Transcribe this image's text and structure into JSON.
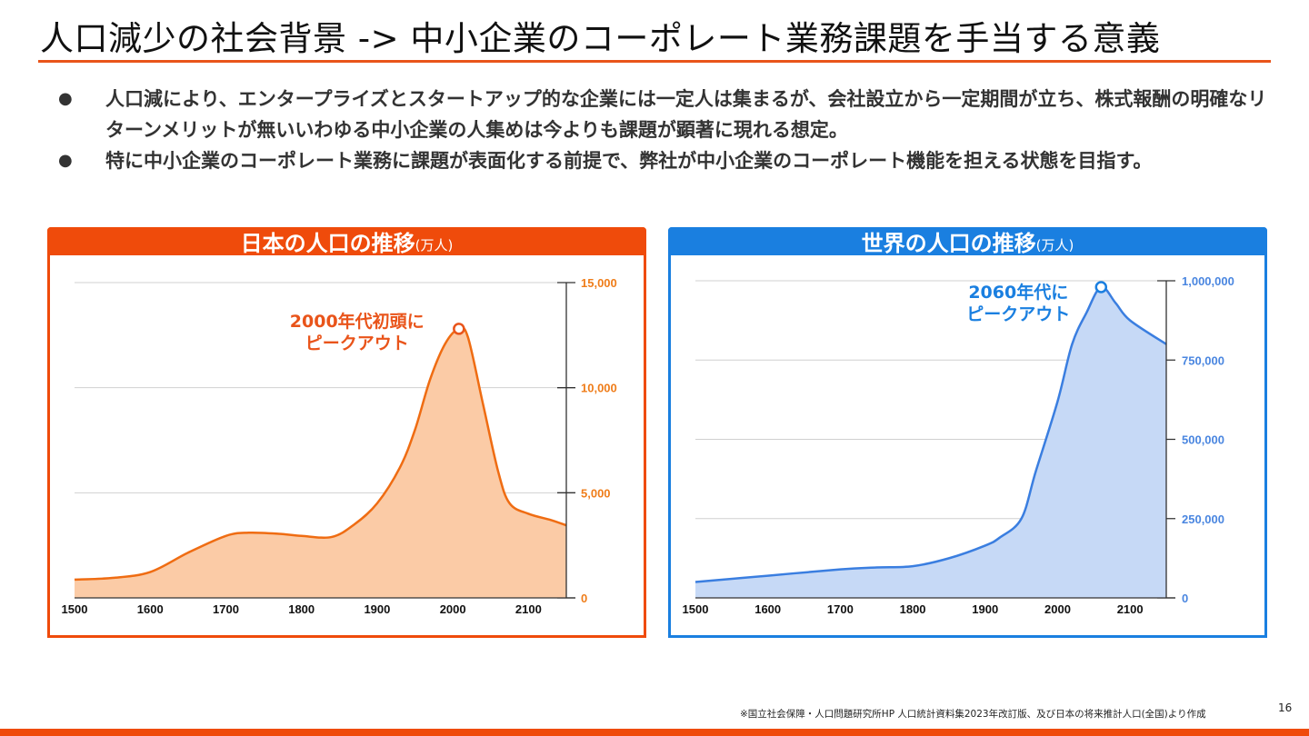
{
  "slide": {
    "title": "人口減少の社会背景 -> 中小企業のコーポレート業務課題を手当する意義",
    "bullets": [
      {
        "marker": "●",
        "text": "人口減により、エンタープライズとスタートアップ的な企業には一定人は集まるが、会社設立から一定期間が立ち、株式報酬の明確なリターンメリットが無いいわゆる中小企業の人集めは今よりも課題が顕著に現れる想定。"
      },
      {
        "marker": "●",
        "text": "特に中小企業のコーポレート業務に課題が表面化する前提で、弊社が中小企業のコーポレート機能を担える状態を目指す。"
      }
    ],
    "footnote": "※国立社会保障・人口問題研究所HP 人口統計資料集2023年改訂版、及び日本の将来推計人口(全国)より作成",
    "page_number": "16",
    "colors": {
      "accent_orange": "#ef4b0b",
      "accent_blue": "#1a7fe0",
      "title_rule": "#e9541a"
    }
  },
  "chart_data": [
    {
      "type": "area",
      "title": "日本の人口の推移",
      "unit_label": "(万人)",
      "xlabel": "",
      "ylabel": "",
      "x_ticks": [
        "1500",
        "1600",
        "1700",
        "1800",
        "1900",
        "2000",
        "2100"
      ],
      "y_ticks": [
        "0",
        "5,000",
        "10,000",
        "15,000"
      ],
      "xlim": [
        1500,
        2150
      ],
      "ylim": [
        0,
        15000
      ],
      "grid": true,
      "y_axis_position": "right",
      "annotation": {
        "lines": [
          "2000年代初頭に",
          "ピークアウト"
        ],
        "x": 2008,
        "y": 12800
      },
      "series": [
        {
          "name": "日本の人口",
          "x": [
            1500,
            1550,
            1600,
            1650,
            1700,
            1730,
            1770,
            1800,
            1840,
            1870,
            1900,
            1930,
            1950,
            1970,
            1990,
            2008,
            2020,
            2040,
            2060,
            2075,
            2100,
            2130,
            2150
          ],
          "values": [
            870,
            950,
            1230,
            2150,
            2950,
            3100,
            3050,
            2950,
            2900,
            3500,
            4500,
            6200,
            8000,
            10400,
            12100,
            12800,
            12400,
            9200,
            6000,
            4500,
            4000,
            3700,
            3450
          ]
        }
      ],
      "colors": {
        "line": "#ef6c12",
        "fill": "#fbcba6",
        "tick_label": "#ef7d1a"
      }
    },
    {
      "type": "area",
      "title": "世界の人口の推移",
      "unit_label": "(万人)",
      "xlabel": "",
      "ylabel": "",
      "x_ticks": [
        "1500",
        "1600",
        "1700",
        "1800",
        "1900",
        "2000",
        "2100"
      ],
      "y_ticks": [
        "0",
        "250,000",
        "500,000",
        "750,000",
        "1,000,000"
      ],
      "xlim": [
        1500,
        2150
      ],
      "ylim": [
        0,
        1000000
      ],
      "grid": true,
      "y_axis_position": "right",
      "annotation": {
        "lines": [
          "2060年代に",
          "ピークアウト"
        ],
        "x": 2060,
        "y": 980000
      },
      "series": [
        {
          "name": "世界の人口",
          "x": [
            1500,
            1600,
            1700,
            1750,
            1800,
            1850,
            1900,
            1920,
            1950,
            1970,
            2000,
            2020,
            2040,
            2060,
            2080,
            2100,
            2150
          ],
          "values": [
            50000,
            70000,
            90000,
            96000,
            100000,
            125000,
            165000,
            190000,
            250000,
            400000,
            620000,
            800000,
            900000,
            980000,
            930000,
            875000,
            800000
          ]
        }
      ],
      "colors": {
        "line": "#3a7ee0",
        "fill": "#c6d9f6",
        "tick_label": "#4a86e0"
      }
    }
  ]
}
